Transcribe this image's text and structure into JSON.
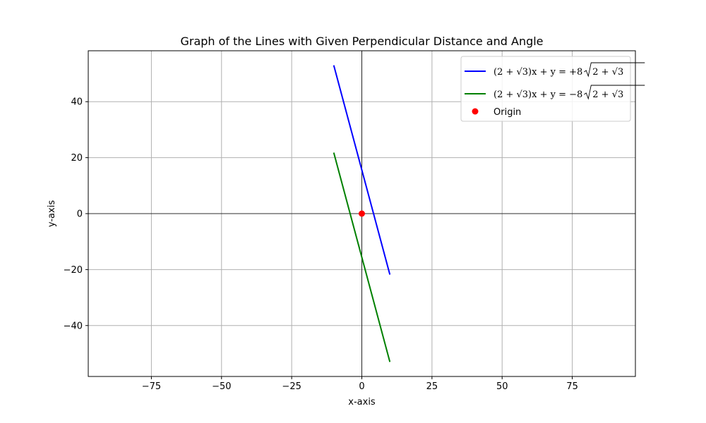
{
  "chart_data": {
    "type": "line",
    "title": "Graph of the Lines with Given Perpendicular Distance and Angle",
    "xlabel": "x-axis",
    "ylabel": "y-axis",
    "xlim": [
      -97.5,
      97.5
    ],
    "ylim": [
      -58.2,
      58.2
    ],
    "xticks": [
      -75,
      -50,
      -25,
      0,
      25,
      50,
      75
    ],
    "yticks": [
      -40,
      -20,
      0,
      20,
      40
    ],
    "grid": true,
    "legend_position": "top-right",
    "series": [
      {
        "name": "(2 + √3)x + y = +8√(2 + √3)",
        "name_parts": {
          "lhs": "(2 + √3)x + y = +8",
          "rad": "2 + √3"
        },
        "color": "#0000ff",
        "x": [
          -10,
          10
        ],
        "y": [
          53.0,
          -21.8
        ]
      },
      {
        "name": "(2 + √3)x + y = −8√(2 + √3)",
        "name_parts": {
          "lhs": "(2 + √3)x + y = −8",
          "rad": "2 + √3"
        },
        "color": "#008000",
        "x": [
          -10,
          10
        ],
        "y": [
          21.8,
          -53.0
        ]
      }
    ],
    "points": [
      {
        "name": "Origin",
        "x": 0,
        "y": 0,
        "color": "#ff0000"
      }
    ]
  }
}
